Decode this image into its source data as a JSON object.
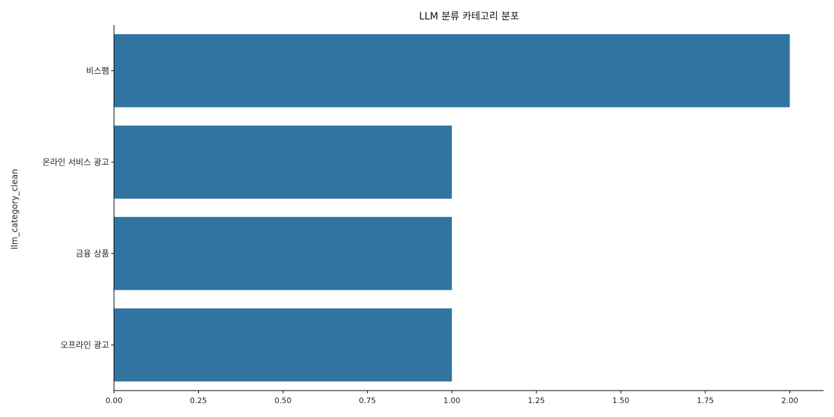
{
  "chart_data": {
    "type": "bar",
    "orientation": "horizontal",
    "title": "LLM 분류 카테고리 분포",
    "xlabel": "",
    "ylabel": "llm_category_clean",
    "categories": [
      "비스팸",
      "온라인 서비스 광고",
      "금융 상품",
      "오프라인 광고"
    ],
    "values": [
      2,
      1,
      1,
      1
    ],
    "xlim": [
      0,
      2.1
    ],
    "xticks": [
      "0.00",
      "0.25",
      "0.50",
      "0.75",
      "1.00",
      "1.25",
      "1.50",
      "1.75",
      "2.00"
    ],
    "grid": false,
    "bar_color": "#3274a1"
  }
}
